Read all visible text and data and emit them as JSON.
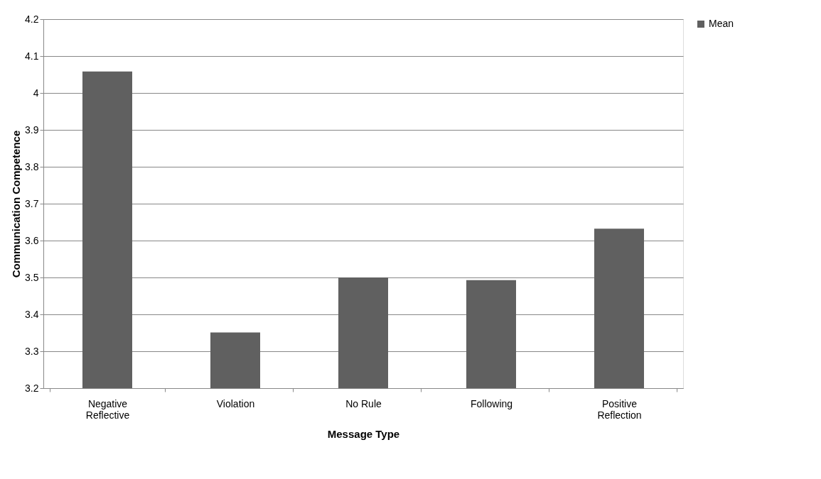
{
  "chart_data": {
    "type": "bar",
    "xlabel": "Message Type",
    "ylabel": "Communication Competence",
    "categories": [
      "Negative Reflective",
      "Violation",
      "No Rule",
      "Following",
      "Positive Reflection"
    ],
    "series": [
      {
        "name": "Mean",
        "color": "#606060",
        "values": [
          4.058,
          3.351,
          3.5,
          3.493,
          3.632
        ]
      }
    ],
    "ylim": [
      3.2,
      4.2
    ],
    "yticks": [
      3.2,
      3.3,
      3.4,
      3.5,
      3.6,
      3.7,
      3.8,
      3.9,
      4,
      4.1,
      4.2
    ],
    "grid": "y",
    "legend": "right"
  }
}
